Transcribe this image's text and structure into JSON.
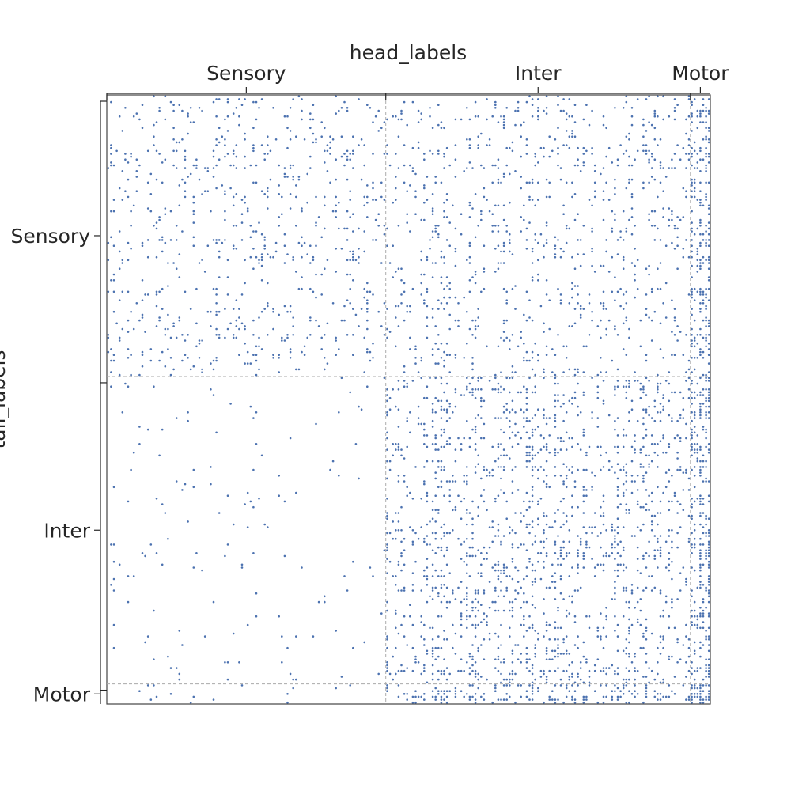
{
  "chart_data": {
    "type": "scatter",
    "description_of_marks": "adjacency matrix spy plot; each dot is a connection from source (row) to target (column)",
    "xlabel": "head_labels",
    "ylabel": "tail_labels",
    "x_tick_labels": [
      "Sensory",
      "Inter",
      "Motor"
    ],
    "y_tick_labels": [
      "Sensory",
      "Inter",
      "Motor"
    ],
    "x_axis_position": "top",
    "grid": false,
    "legend": "none",
    "marker_color": "#4c72b0",
    "divider_color": "#aaaaaa",
    "groups": [
      {
        "name": "Sensory",
        "start": 0,
        "end": 98
      },
      {
        "name": "Inter",
        "start": 98,
        "end": 205
      },
      {
        "name": "Motor",
        "start": 205,
        "end": 212
      }
    ],
    "n_nodes": 212,
    "block_density": {
      "Sensory-Sensory": 0.085,
      "Sensory-Inter": 0.085,
      "Sensory-Motor": 0.28,
      "Inter-Sensory": 0.015,
      "Inter-Inter": 0.14,
      "Inter-Motor": 0.3,
      "Motor-Sensory": 0.015,
      "Motor-Inter": 0.2,
      "Motor-Motor": 0.6
    }
  }
}
